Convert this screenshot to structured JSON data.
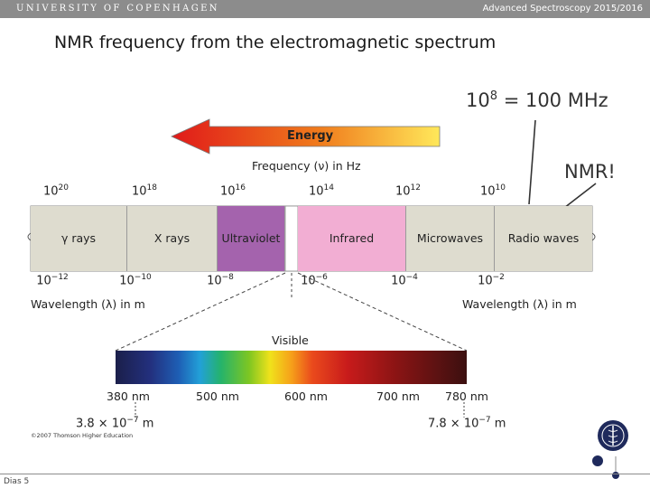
{
  "header": {
    "university": "UNIVERSITY OF COPENHAGEN",
    "course": "Advanced Spectroscopy 2015/2016"
  },
  "title": "NMR frequency from the electromagnetic spectrum",
  "annotation": {
    "freq_base": "10",
    "freq_exp": "8",
    "freq_rest": " = 100 MHz",
    "nmr": "NMR!"
  },
  "energy_label": "Energy",
  "frequency_axis_label": "Frequency (ν) in Hz",
  "freq_ticks": [
    {
      "base": "10",
      "exp": "20"
    },
    {
      "base": "10",
      "exp": "18"
    },
    {
      "base": "10",
      "exp": "16"
    },
    {
      "base": "10",
      "exp": "14"
    },
    {
      "base": "10",
      "exp": "12"
    },
    {
      "base": "10",
      "exp": "10"
    }
  ],
  "bands": [
    {
      "label": "γ rays",
      "color": "#dedccf"
    },
    {
      "label": "X rays",
      "color": "#dedccf"
    },
    {
      "label": "Ultraviolet",
      "color": "#a463ad"
    },
    {
      "label": "Infrared",
      "color": "#f2aed3"
    },
    {
      "label": "Microwaves",
      "color": "#dedccf"
    },
    {
      "label": "Radio waves",
      "color": "#dedccf"
    }
  ],
  "wavelength_ticks": [
    {
      "base": "10",
      "exp": "−12"
    },
    {
      "base": "10",
      "exp": "−10"
    },
    {
      "base": "10",
      "exp": "−8"
    },
    {
      "base": "10",
      "exp": "−6"
    },
    {
      "base": "10",
      "exp": "−4"
    },
    {
      "base": "10",
      "exp": "−2"
    }
  ],
  "wavelength_axis_label_left": "Wavelength (λ) in m",
  "wavelength_axis_label_right": "Wavelength (λ) in m",
  "visible_label": "Visible",
  "visible_nm_labels": [
    "380 nm",
    "500 nm",
    "600 nm",
    "700 nm",
    "780 nm"
  ],
  "visible_bounds": [
    {
      "mantissa": "3.8 × 10",
      "exp": "−7",
      "unit": " m"
    },
    {
      "mantissa": "7.8 × 10",
      "exp": "−7",
      "unit": " m"
    }
  ],
  "copyright": "©2007 Thomson Higher Education",
  "slide_label": "Dias 5",
  "colors": {
    "header_bar": "#8c8c8c",
    "energy_arrow_start": "#e02020",
    "energy_arrow_end": "#ffe040",
    "logo": "#1f2a5c"
  },
  "icons": {
    "logo": "university-seal-icon"
  }
}
